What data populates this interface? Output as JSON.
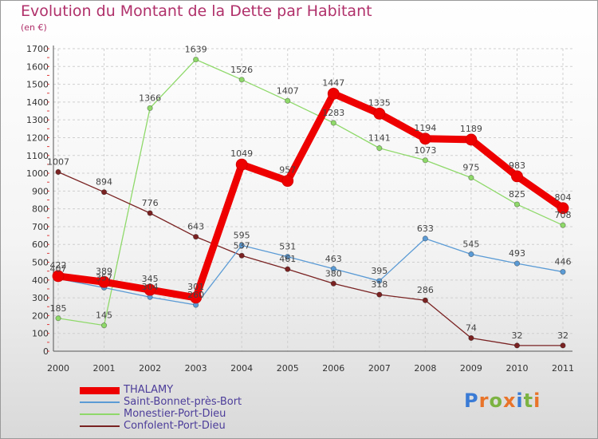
{
  "title": "Evolution du Montant de la Dette par Habitant",
  "unit_label": "(en €)",
  "logo_text": "Proxiti",
  "chart_data": {
    "type": "line",
    "x": [
      "2000",
      "2001",
      "2002",
      "2003",
      "2004",
      "2005",
      "2006",
      "2007",
      "2008",
      "2009",
      "2010",
      "2011"
    ],
    "ylim": [
      0,
      1700
    ],
    "yticks": [
      0,
      100,
      200,
      300,
      400,
      500,
      600,
      700,
      800,
      900,
      1000,
      1100,
      1200,
      1300,
      1400,
      1500,
      1600,
      1700
    ],
    "grid": true,
    "legend_position": "bottom-left",
    "series": [
      {
        "name": "THALAMY",
        "color": "#ee0000",
        "values": [
          422,
          389,
          345,
          301,
          1049,
          957,
          1447,
          1335,
          1194,
          1189,
          983,
          804
        ]
      },
      {
        "name": "Saint-Bonnet-près-Bort",
        "color": "#5b9bd5",
        "values": [
          407,
          357,
          304,
          260,
          595,
          531,
          463,
          395,
          633,
          545,
          493,
          446
        ]
      },
      {
        "name": "Monestier-Port-Dieu",
        "color": "#8fd96a",
        "values": [
          185,
          145,
          1366,
          1639,
          1526,
          1407,
          1283,
          1141,
          1073,
          975,
          825,
          708
        ]
      },
      {
        "name": "Confolent-Port-Dieu",
        "color": "#7a2222",
        "values": [
          1007,
          894,
          776,
          643,
          537,
          461,
          380,
          318,
          286,
          74,
          32,
          32
        ]
      }
    ]
  }
}
